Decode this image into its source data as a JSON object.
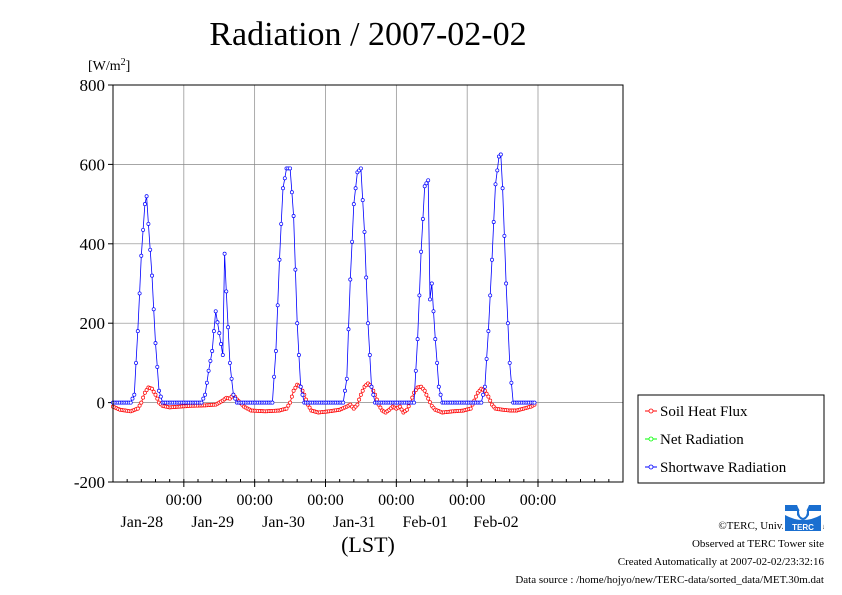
{
  "page": {
    "credit_line_1": "©TERC, Univ. Tsukuba",
    "credit_line_2": "Observed at TERC Tower site",
    "credit_line_3": "Created Automatically at 2007-02-02/23:32:16",
    "credit_line_4": "Data source : /home/hojyo/new/TERC-data/sorted_data/MET.30m.dat",
    "logo_text": "TERC"
  },
  "chart_data": {
    "type": "line",
    "title": "Radiation / 2007-02-02",
    "ylabel": "[W/m2]",
    "xlabel": "(LST)",
    "xlim": [
      0,
      144
    ],
    "ylim": [
      -200,
      800
    ],
    "yticks": [
      -200,
      0,
      200,
      400,
      600,
      800
    ],
    "xticks": [
      {
        "x": 20,
        "time": "00:00",
        "date": "Jan-28"
      },
      {
        "x": 40,
        "time": "00:00",
        "date": "Jan-29"
      },
      {
        "x": 60,
        "time": "00:00",
        "date": "Jan-30"
      },
      {
        "x": 80,
        "time": "00:00",
        "date": "Jan-31"
      },
      {
        "x": 100,
        "time": "00:00",
        "date": "Feb-01"
      },
      {
        "x": 120,
        "time": "00:00",
        "date": "Feb-02"
      }
    ],
    "grid": true,
    "legend_position": "right-bottom",
    "series": [
      {
        "name": "Soil Heat Flux",
        "color": "#ff0000",
        "points": [
          [
            0,
            -10
          ],
          [
            2,
            -18
          ],
          [
            5,
            -22
          ],
          [
            7,
            -15
          ],
          [
            8,
            0
          ],
          [
            9,
            25
          ],
          [
            10,
            38
          ],
          [
            11,
            35
          ],
          [
            12,
            20
          ],
          [
            13,
            0
          ],
          [
            14,
            -8
          ],
          [
            16,
            -12
          ],
          [
            19,
            -10
          ],
          [
            22,
            -8
          ],
          [
            26,
            -7
          ],
          [
            29,
            -5
          ],
          [
            31,
            5
          ],
          [
            32,
            12
          ],
          [
            33,
            10
          ],
          [
            34,
            20
          ],
          [
            35,
            8
          ],
          [
            37,
            -10
          ],
          [
            39,
            -20
          ],
          [
            43,
            -22
          ],
          [
            47,
            -20
          ],
          [
            49,
            -15
          ],
          [
            50,
            0
          ],
          [
            51,
            30
          ],
          [
            52,
            45
          ],
          [
            53,
            40
          ],
          [
            54,
            20
          ],
          [
            55,
            -5
          ],
          [
            56,
            -20
          ],
          [
            58,
            -25
          ],
          [
            61,
            -22
          ],
          [
            64,
            -18
          ],
          [
            66,
            -10
          ],
          [
            67,
            -5
          ],
          [
            68,
            -15
          ],
          [
            69,
            -5
          ],
          [
            70,
            20
          ],
          [
            71,
            40
          ],
          [
            72,
            48
          ],
          [
            73,
            40
          ],
          [
            74,
            20
          ],
          [
            75,
            -5
          ],
          [
            76,
            -20
          ],
          [
            77,
            -25
          ],
          [
            78,
            -18
          ],
          [
            79,
            -10
          ],
          [
            80,
            -15
          ],
          [
            81,
            -10
          ],
          [
            82,
            -25
          ],
          [
            83,
            -18
          ],
          [
            84,
            0
          ],
          [
            85,
            25
          ],
          [
            86,
            38
          ],
          [
            87,
            40
          ],
          [
            88,
            30
          ],
          [
            89,
            10
          ],
          [
            90,
            -8
          ],
          [
            91,
            -18
          ],
          [
            93,
            -25
          ],
          [
            96,
            -22
          ],
          [
            99,
            -20
          ],
          [
            101,
            -15
          ],
          [
            102,
            5
          ],
          [
            103,
            25
          ],
          [
            104,
            35
          ],
          [
            105,
            30
          ],
          [
            106,
            15
          ],
          [
            107,
            -5
          ],
          [
            108,
            -15
          ],
          [
            110,
            -18
          ],
          [
            112,
            -20
          ],
          [
            114,
            -20
          ],
          [
            116,
            -15
          ],
          [
            118,
            -10
          ],
          [
            119,
            -5
          ]
        ]
      },
      {
        "name": "Net Radiation",
        "color": "#00ff00",
        "points": []
      },
      {
        "name": "Shortwave Radiation",
        "color": "#0000ff",
        "points": [
          [
            0,
            0
          ],
          [
            5,
            0
          ],
          [
            6,
            20
          ],
          [
            7,
            180
          ],
          [
            8,
            370
          ],
          [
            9,
            500
          ],
          [
            9.5,
            520
          ],
          [
            10,
            450
          ],
          [
            11,
            320
          ],
          [
            12,
            150
          ],
          [
            13,
            30
          ],
          [
            14,
            0
          ],
          [
            25,
            0
          ],
          [
            26,
            20
          ],
          [
            27,
            80
          ],
          [
            28,
            130
          ],
          [
            29,
            230
          ],
          [
            30,
            175
          ],
          [
            31,
            120
          ],
          [
            31.5,
            375
          ],
          [
            32,
            280
          ],
          [
            33,
            100
          ],
          [
            34,
            20
          ],
          [
            35,
            0
          ],
          [
            45,
            0
          ],
          [
            46,
            130
          ],
          [
            47,
            360
          ],
          [
            48,
            540
          ],
          [
            49,
            590
          ],
          [
            50,
            590
          ],
          [
            51,
            470
          ],
          [
            52,
            200
          ],
          [
            53,
            40
          ],
          [
            54,
            0
          ],
          [
            65,
            0
          ],
          [
            66,
            60
          ],
          [
            67,
            310
          ],
          [
            68,
            500
          ],
          [
            69,
            580
          ],
          [
            70,
            590
          ],
          [
            71,
            430
          ],
          [
            72,
            200
          ],
          [
            73,
            40
          ],
          [
            74,
            0
          ],
          [
            85,
            0
          ],
          [
            86,
            160
          ],
          [
            87,
            380
          ],
          [
            88,
            545
          ],
          [
            89,
            560
          ],
          [
            89.5,
            260
          ],
          [
            90,
            300
          ],
          [
            91,
            160
          ],
          [
            92,
            40
          ],
          [
            93,
            0
          ],
          [
            104,
            0
          ],
          [
            105,
            40
          ],
          [
            106,
            180
          ],
          [
            107,
            360
          ],
          [
            108,
            550
          ],
          [
            109,
            620
          ],
          [
            109.5,
            625
          ],
          [
            110,
            540
          ],
          [
            111,
            300
          ],
          [
            112,
            100
          ],
          [
            113,
            0
          ],
          [
            119,
            0
          ]
        ]
      }
    ]
  }
}
